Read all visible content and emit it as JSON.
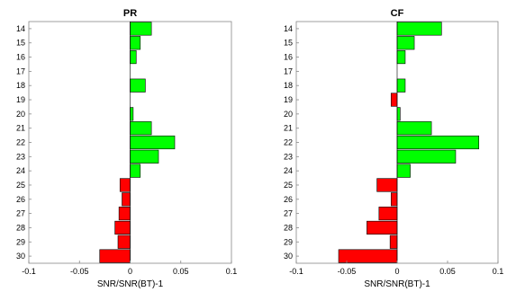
{
  "chart_data": [
    {
      "type": "bar",
      "orientation": "horizontal",
      "title": "PR",
      "xlabel": "SNR/SNR(BT)-1",
      "ylabel": "",
      "xlim": [
        -0.1,
        0.1
      ],
      "xticks": [
        "-0.1",
        "-0.05",
        "0",
        "0.05",
        "0.1"
      ],
      "xtick_values": [
        -0.1,
        -0.05,
        0,
        0.05,
        0.1
      ],
      "categories": [
        "14",
        "15",
        "16",
        "17",
        "18",
        "19",
        "20",
        "21",
        "22",
        "23",
        "24",
        "25",
        "26",
        "27",
        "28",
        "29",
        "30"
      ],
      "values": [
        0.021,
        0.01,
        0.006,
        0,
        0.015,
        0,
        0.003,
        0.021,
        0.044,
        0.028,
        0.01,
        -0.01,
        -0.008,
        -0.011,
        -0.015,
        -0.012,
        -0.03
      ],
      "positive_color": "#00ff00",
      "negative_color": "#ff0000",
      "grid": false
    },
    {
      "type": "bar",
      "orientation": "horizontal",
      "title": "CF",
      "xlabel": "SNR/SNR(BT)-1",
      "ylabel": "",
      "xlim": [
        -0.1,
        0.1
      ],
      "xticks": [
        "-0.1",
        "-0.05",
        "0",
        "0.05",
        "0.1"
      ],
      "xtick_values": [
        -0.1,
        -0.05,
        0,
        0.05,
        0.1
      ],
      "categories": [
        "14",
        "15",
        "16",
        "17",
        "18",
        "19",
        "20",
        "21",
        "22",
        "23",
        "24",
        "25",
        "26",
        "27",
        "28",
        "29",
        "30"
      ],
      "values": [
        0.044,
        0.017,
        0.008,
        0,
        0.008,
        -0.006,
        0.003,
        0.034,
        0.081,
        0.058,
        0.013,
        -0.02,
        -0.006,
        -0.018,
        -0.03,
        -0.007,
        -0.058
      ],
      "positive_color": "#00ff00",
      "negative_color": "#ff0000",
      "grid": false
    }
  ]
}
